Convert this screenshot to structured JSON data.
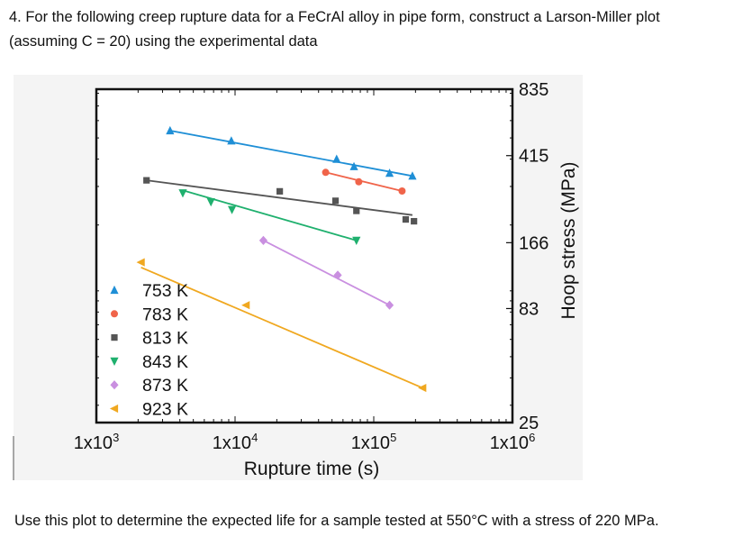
{
  "question": {
    "text": "4. For the following creep rupture data for a FeCrAl alloy in pipe form, construct a Larson-Miller plot (assuming C = 20) using the experimental data"
  },
  "followup": {
    "text": "Use this plot to determine the expected life for a sample tested at 550°C with a stress of 220 MPa."
  },
  "chart_data": {
    "type": "scatter",
    "title": "",
    "xlabel": "Rupture time (s)",
    "ylabel": "Hoop stress (MPa)",
    "xscale": "log",
    "yscale": "log",
    "xlim": [
      1000,
      1000000
    ],
    "ylim": [
      25,
      835
    ],
    "x_tick_base": "1x10",
    "x_ticks": [
      {
        "value": 1000,
        "exponent": "3"
      },
      {
        "value": 10000,
        "exponent": "4"
      },
      {
        "value": 100000,
        "exponent": "5"
      },
      {
        "value": 1000000,
        "exponent": "6"
      }
    ],
    "y_ticks": [
      {
        "value": 835,
        "label": "835"
      },
      {
        "value": 415,
        "label": "415"
      },
      {
        "value": 166,
        "label": "166"
      },
      {
        "value": 83,
        "label": "83"
      },
      {
        "value": 25,
        "label": "25"
      }
    ],
    "legend_position": "bottom-left",
    "series": [
      {
        "name": "753 K",
        "color": "#1f8fd6",
        "marker": "triangle-up",
        "points": [
          [
            3400,
            540
          ],
          [
            9400,
            485
          ],
          [
            54000,
            400
          ],
          [
            72000,
            370
          ],
          [
            130000,
            345
          ],
          [
            190000,
            335
          ]
        ],
        "fit": [
          [
            3400,
            540
          ],
          [
            190000,
            335
          ]
        ]
      },
      {
        "name": "783 K",
        "color": "#f0644a",
        "marker": "circle",
        "points": [
          [
            45000,
            348
          ],
          [
            78000,
            315
          ],
          [
            160000,
            286
          ]
        ],
        "fit": [
          [
            45000,
            348
          ],
          [
            160000,
            286
          ]
        ]
      },
      {
        "name": "813 K",
        "color": "#555555",
        "marker": "square",
        "points": [
          [
            2300,
            320
          ],
          [
            21000,
            285
          ],
          [
            53000,
            258
          ],
          [
            75000,
            232
          ],
          [
            170000,
            212
          ],
          [
            195000,
            208
          ]
        ],
        "fit": [
          [
            2300,
            320
          ],
          [
            190000,
            222
          ]
        ]
      },
      {
        "name": "843 K",
        "color": "#1fb06e",
        "marker": "triangle-down",
        "points": [
          [
            4200,
            280
          ],
          [
            6700,
            255
          ],
          [
            9500,
            235
          ],
          [
            75000,
            170
          ]
        ],
        "fit": [
          [
            4200,
            288
          ],
          [
            75000,
            170
          ]
        ]
      },
      {
        "name": "873 K",
        "color": "#c98fe0",
        "marker": "diamond",
        "points": [
          [
            16000,
            170
          ],
          [
            55000,
            118
          ],
          [
            130000,
            86
          ]
        ],
        "fit": [
          [
            16000,
            170
          ],
          [
            130000,
            86
          ]
        ]
      },
      {
        "name": "923 K",
        "color": "#f0a820",
        "marker": "triangle-left",
        "points": [
          [
            2100,
            135
          ],
          [
            12000,
            86
          ],
          [
            225000,
            36
          ]
        ],
        "fit": [
          [
            2100,
            128
          ],
          [
            225000,
            36
          ]
        ]
      }
    ]
  }
}
